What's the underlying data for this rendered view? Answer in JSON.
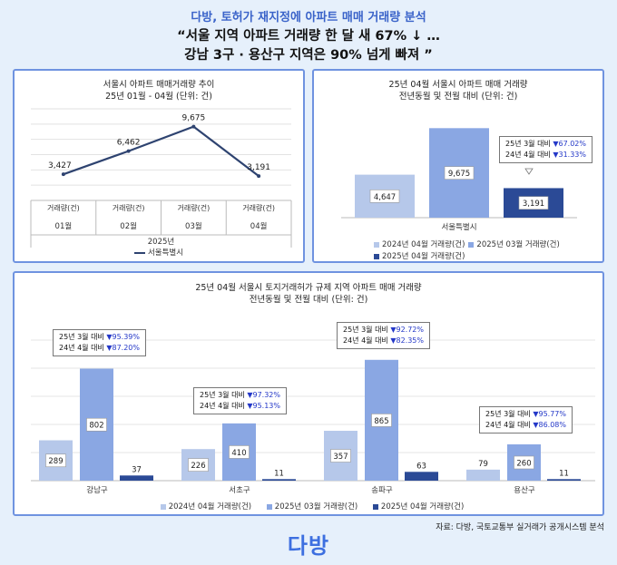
{
  "header": {
    "line1": "다방, 토허가 재지정에 아파트 매매 거래량 분석",
    "line2": "“서울 지역 아파트 거래량 한 달 새 67% ↓ …",
    "line3": "강남 3구 · 용산구 지역은 90% 넘게 빠져 ”"
  },
  "colors": {
    "accent": "#3a63c9",
    "border": "#6f93e0",
    "bar2024": "#b6c8ea",
    "bar202503": "#8aa7e3",
    "bar202504": "#2b4a96",
    "line": "#2e4370",
    "down": "#2438c8"
  },
  "chart_data": [
    {
      "type": "line",
      "title": "서울시 아파트 매매거래량 추이",
      "subtitle": "25년 01월 - 04월 (단위: 건)",
      "categories": [
        "01월",
        "02월",
        "03월",
        "04월"
      ],
      "category_header": "거래량(건)",
      "year_label": "2025년",
      "series": [
        {
          "name": "서울특별시",
          "values": [
            3427,
            6462,
            9675,
            3191
          ]
        }
      ],
      "value_labels": [
        "3,427",
        "6,462",
        "9,675",
        "3,191"
      ],
      "ylim": [
        0,
        12000
      ],
      "grid": true,
      "legend": "bottom"
    },
    {
      "type": "bar",
      "title": "25년 04월 서울시 아파트 매매 거래량",
      "subtitle": "전년동월 및 전월 대비 (단위: 건)",
      "categories": [
        "서울특별시"
      ],
      "series": [
        {
          "name": "2024년 04월 거래량(건)",
          "values": [
            4647
          ]
        },
        {
          "name": "2025년 03월 거래량(건)",
          "values": [
            9675
          ]
        },
        {
          "name": "2025년 04월 거래량(건)",
          "values": [
            3191
          ]
        }
      ],
      "value_labels": [
        [
          "4,647"
        ],
        [
          "9,675"
        ],
        [
          "3,191"
        ]
      ],
      "ylim": [
        0,
        10000
      ],
      "annotations": [
        {
          "l1a": "25년 3월 대비 ",
          "l1b": "▼67.02%",
          "l2a": "24년 4월 대비 ",
          "l2b": "▼31.33%"
        }
      ],
      "legend": "bottom"
    },
    {
      "type": "bar",
      "title": "25년 04월 서울시 토지거래허가 규제 지역 아파트 매매 거래량",
      "subtitle": "전년동월 및 전월 대비 (단위: 건)",
      "categories": [
        "강남구",
        "서초구",
        "송파구",
        "용산구"
      ],
      "series": [
        {
          "name": "2024년 04월 거래량(건)",
          "values": [
            289,
            226,
            357,
            79
          ]
        },
        {
          "name": "2025년 03월 거래량(건)",
          "values": [
            802,
            410,
            865,
            260
          ]
        },
        {
          "name": "2025년 04월 거래량(건)",
          "values": [
            37,
            11,
            63,
            11
          ]
        }
      ],
      "ylim": [
        0,
        1000
      ],
      "annotations": [
        {
          "l1a": "25년 3월 대비 ",
          "l1b": "▼95.39%",
          "l2a": "24년 4월 대비 ",
          "l2b": "▼87.20%"
        },
        {
          "l1a": "25년 3월 대비 ",
          "l1b": "▼97.32%",
          "l2a": "24년 4월 대비 ",
          "l2b": "▼95.13%"
        },
        {
          "l1a": "25년 3월 대비 ",
          "l1b": "▼92.72%",
          "l2a": "24년 4월 대비 ",
          "l2b": "▼82.35%"
        },
        {
          "l1a": "25년 3월 대비 ",
          "l1b": "▼95.77%",
          "l2a": "24년 4월 대비 ",
          "l2b": "▼86.08%"
        }
      ],
      "legend": "bottom"
    }
  ],
  "footer": {
    "source": "자료: 다방, 국토교통부 실거래가 공개시스템 분석",
    "logo": "다방"
  }
}
